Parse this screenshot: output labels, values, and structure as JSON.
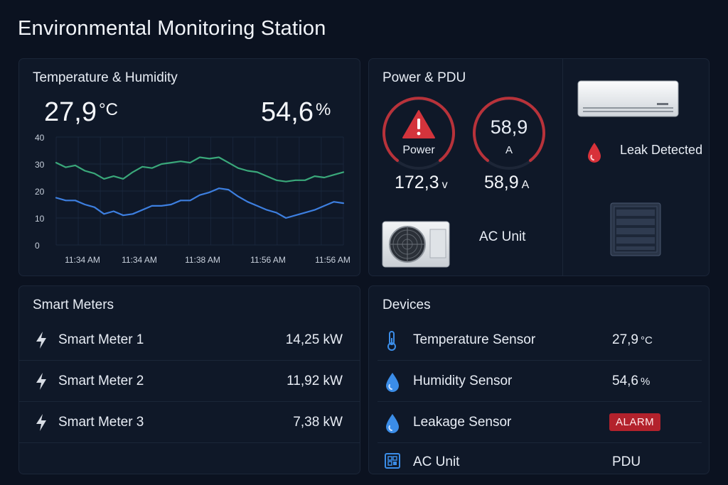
{
  "page": {
    "title": "Environmental Monitoring Station"
  },
  "temperature_card": {
    "title": "Temperature & Humidity",
    "temperature": {
      "value": "27,9",
      "unit": "°C"
    },
    "humidity": {
      "value": "54,6",
      "unit": "%"
    }
  },
  "chart_data": {
    "type": "line",
    "title": "",
    "xlabel": "",
    "ylabel": "",
    "ylim": [
      0,
      40
    ],
    "yticks": [
      0,
      10,
      20,
      30,
      40
    ],
    "xtick_labels": [
      "11:34 AM",
      "11:34 AM",
      "11:38 AM",
      "11:56 AM",
      "11:56 AM"
    ],
    "grid": true,
    "series": [
      {
        "color": "#3aa87a",
        "values": [
          30.5,
          28.8,
          29.5,
          27.5,
          26.5,
          24.5,
          25.5,
          24.5,
          27,
          29,
          28.5,
          30,
          30.5,
          31,
          30.5,
          32.5,
          32,
          32.5,
          30.5,
          28.5,
          27.5,
          27,
          25.5,
          24,
          23.5,
          24,
          24,
          25.5,
          25,
          26,
          27
        ]
      },
      {
        "color": "#3d7fe0",
        "values": [
          17.5,
          16.5,
          16.5,
          15,
          14,
          11.5,
          12.5,
          11,
          11.5,
          13,
          14.5,
          14.5,
          15,
          16.5,
          16.5,
          18.5,
          19.5,
          21,
          20.5,
          18,
          16,
          14.5,
          13,
          12,
          10,
          11,
          12,
          13,
          14.5,
          16,
          15.5
        ]
      }
    ]
  },
  "power_card": {
    "title": "Power & PDU",
    "power_gauge": {
      "label": "Power"
    },
    "current_gauge": {
      "value": "58,9",
      "unit": "A"
    },
    "voltage": {
      "value": "172,3",
      "unit": "v"
    },
    "current": {
      "value": "58,9",
      "unit": "A"
    },
    "ac_unit_label": "AC Unit",
    "leak_label": "Leak Detected"
  },
  "meters_card": {
    "title": "Smart Meters",
    "meters": [
      {
        "name": "Smart Meter 1",
        "value": "14,25 kW"
      },
      {
        "name": "Smart Meter 2",
        "value": "11,92 kW"
      },
      {
        "name": "Smart Meter 3",
        "value": "7,38 kW"
      }
    ]
  },
  "devices_card": {
    "title": "Devices",
    "devices": [
      {
        "name": "Temperature Sensor",
        "value": "27,9",
        "unit": "°C",
        "icon": "thermometer-icon"
      },
      {
        "name": "Humidity Sensor",
        "value": "54,6",
        "unit": "%",
        "icon": "water-drop-icon"
      },
      {
        "name": "Leakage Sensor",
        "status": "ALARM",
        "icon": "water-drop-icon"
      },
      {
        "name": "AC Unit",
        "value": "PDU",
        "icon": "grid-icon"
      }
    ]
  },
  "colors": {
    "background": "#0b1220",
    "card": "#0f1828",
    "alarm": "#b3222c",
    "gauge_ring": "#b8323a",
    "temperature_line": "#3aa87a",
    "humidity_line": "#3d7fe0",
    "accent_blue": "#3b8de8"
  }
}
